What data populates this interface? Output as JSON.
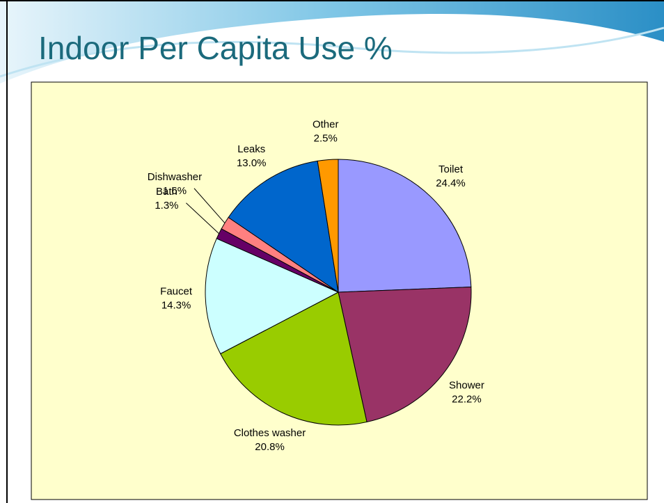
{
  "chart_data": {
    "type": "pie",
    "title": "Indoor Per Capita Use %",
    "categories": [
      "Toilet",
      "Shower",
      "Clothes washer",
      "Faucet",
      "Bath",
      "Dishwasher",
      "Leaks",
      "Other"
    ],
    "values": [
      24.4,
      22.2,
      20.8,
      14.3,
      1.3,
      1.6,
      13.0,
      2.5
    ],
    "value_labels": [
      "24.4%",
      "22.2%",
      "20.8%",
      "14.3%",
      "1.3%",
      "1.6%",
      "13.0%",
      "2.5%"
    ],
    "colors": [
      "#9999ff",
      "#993366",
      "#99cc00",
      "#ccffff",
      "#660066",
      "#ff8080",
      "#0066cc",
      "#ff9900"
    ]
  }
}
